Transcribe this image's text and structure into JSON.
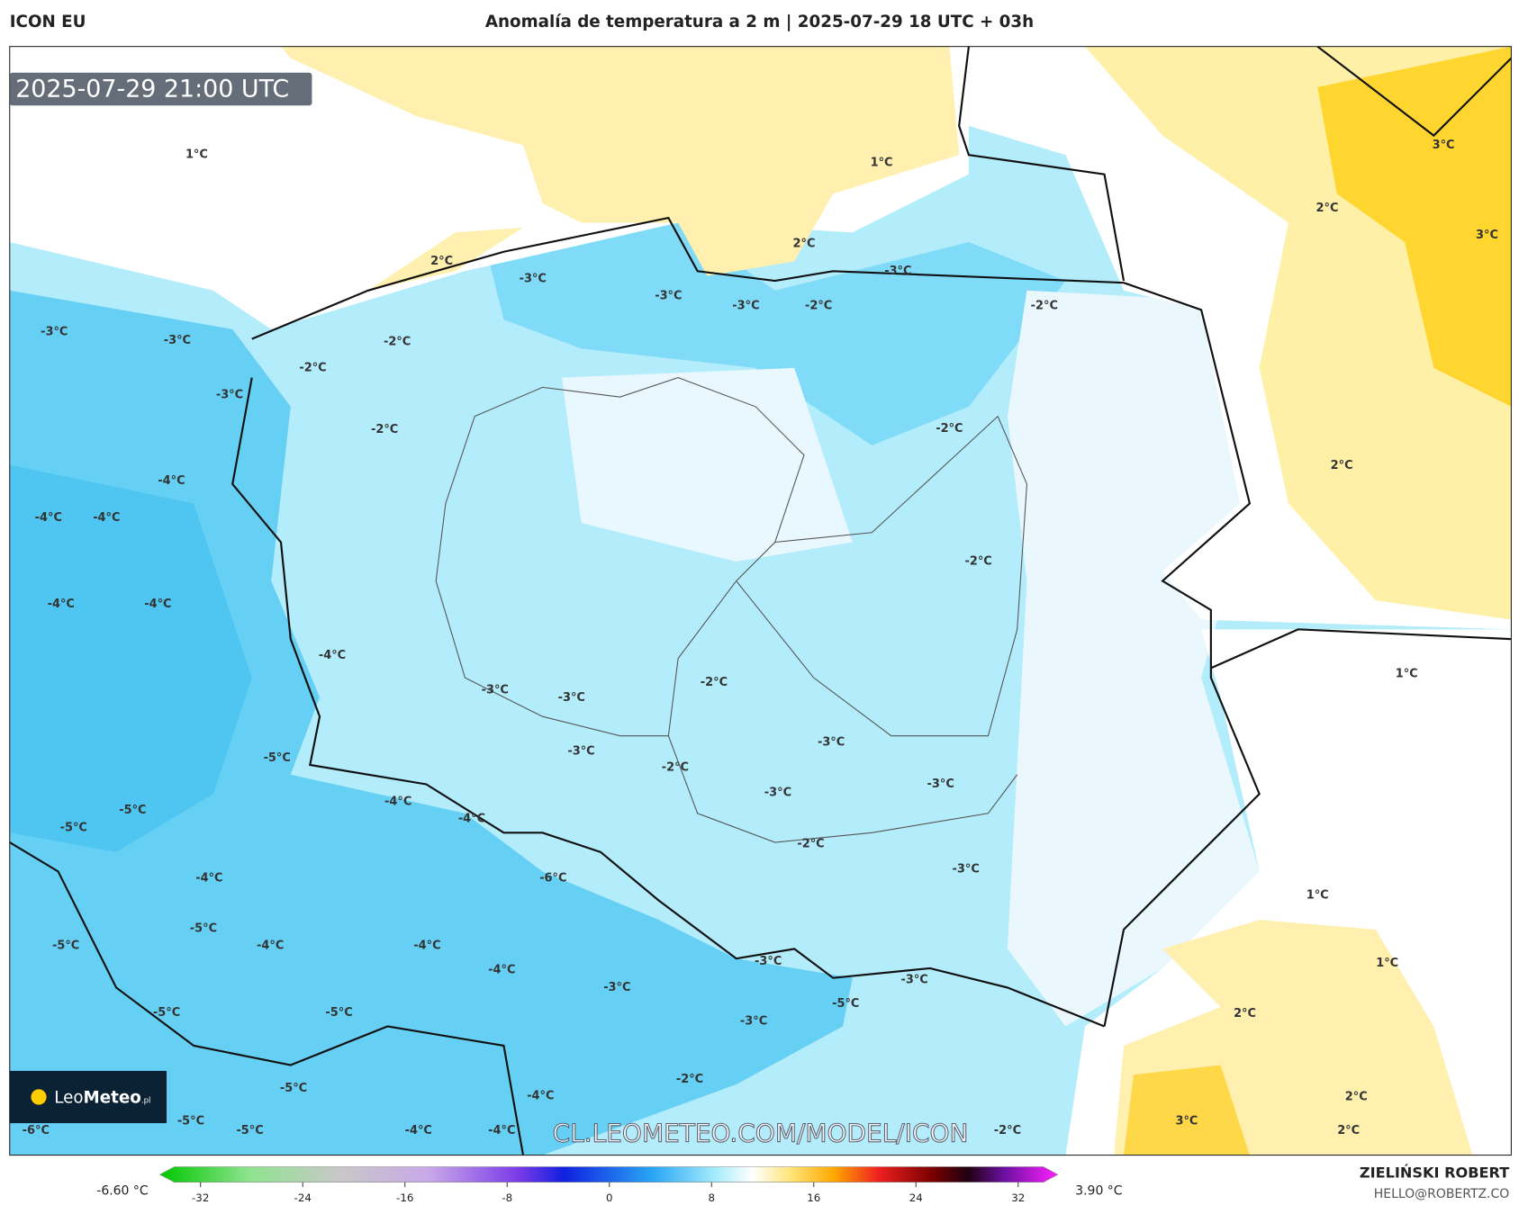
{
  "header": {
    "model": "ICON EU",
    "title": "Anomalía de temperatura a 2 m | 2025-07-29 18 UTC + 03h"
  },
  "map": {
    "timestamp": "2025-07-29 21:00 UTC",
    "watermark": "CL.LEOMETEO.COM/MODEL/ICON",
    "logo": {
      "name": "Leo",
      "name_bold": "Meteo",
      "suffix": ".pl"
    },
    "contour_labels": [
      "1°C",
      "1°C",
      "2°C",
      "2°C",
      "-3°C",
      "-3°C",
      "-3°C",
      "-3°C",
      "-2°C",
      "-2°C",
      "-3°C",
      "-3°C",
      "-2°C",
      "-2°C",
      "-3°C",
      "-2°C",
      "-2°C",
      "-4°C",
      "-4°C",
      "-4°C",
      "-2°C",
      "-4°C",
      "-4°C",
      "-4°C",
      "-2°C",
      "-3°C",
      "-3°C",
      "-5°C",
      "-3°C",
      "-2°C",
      "-3°C",
      "-3°C",
      "-3°C",
      "-4°C",
      "-5°C",
      "-4°C",
      "-5°C",
      "-2°C",
      "-3°C",
      "-6°C",
      "-4°C",
      "-5°C",
      "-4°C",
      "-4°C",
      "-5°C",
      "-4°C",
      "-3°C",
      "-3°C",
      "-3°C",
      "-5°C",
      "-5°C",
      "-5°C",
      "-3°C",
      "-2°C",
      "-5°C",
      "-4°C",
      "-5°C",
      "-5°C",
      "-4°C",
      "-4°C",
      "-6°C",
      "-2°C",
      "3°C",
      "2°C",
      "3°C",
      "2°C",
      "1°C",
      "1°C",
      "1°C",
      "2°C",
      "2°C",
      "3°C",
      "2°C"
    ]
  },
  "colorbar": {
    "min_label": "-6.60 °C",
    "max_label": "3.90 °C",
    "ticks": [
      -32,
      -24,
      -16,
      -8,
      0,
      8,
      16,
      24,
      32
    ]
  },
  "footer": {
    "author": "ZIELIŃSKI ROBERT",
    "email": "HELLO@ROBERTZ.CO"
  }
}
